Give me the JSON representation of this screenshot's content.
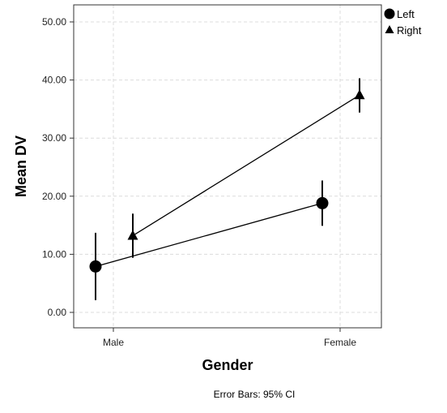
{
  "chart_data": {
    "type": "line",
    "xlabel": "Gender",
    "ylabel": "Mean DV",
    "categories": [
      "Male",
      "Female"
    ],
    "ylim": [
      -2.5,
      52.5
    ],
    "yticks": [
      0,
      10,
      20,
      30,
      40,
      50
    ],
    "ytick_labels": [
      "0.00",
      "10.00",
      "20.00",
      "30.00",
      "40.00",
      "50.00"
    ],
    "grid": true,
    "legend_position": "top-right, outside plot",
    "footnote": "Error Bars: 95% CI",
    "series": [
      {
        "name": "Left",
        "marker": "circle",
        "values": [
          7.9,
          18.8
        ],
        "ci_low": [
          2.1,
          14.9
        ],
        "ci_high": [
          13.7,
          22.7
        ]
      },
      {
        "name": "Right",
        "marker": "triangle",
        "values": [
          13.2,
          37.4
        ],
        "ci_low": [
          9.4,
          34.4
        ],
        "ci_high": [
          17.0,
          40.3
        ]
      }
    ]
  }
}
